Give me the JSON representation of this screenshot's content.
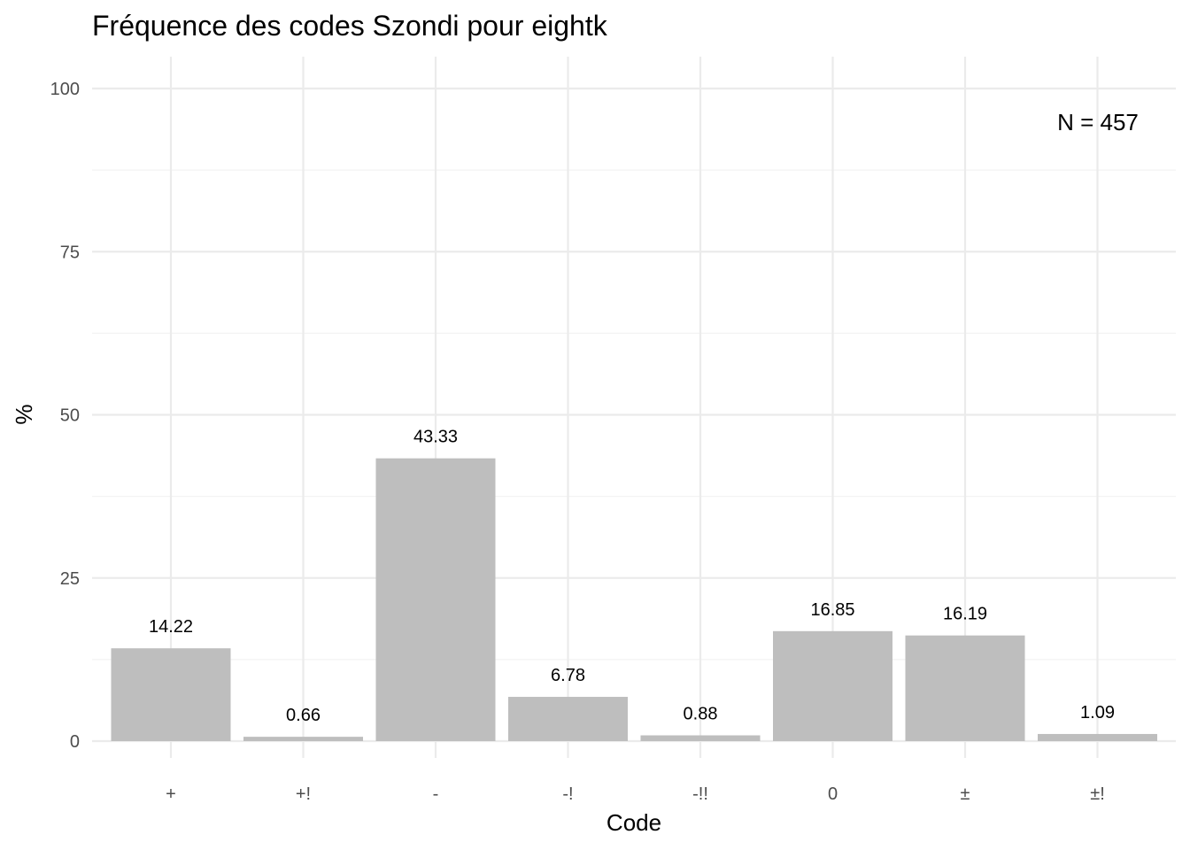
{
  "chart_data": {
    "type": "bar",
    "title": "Fréquence des codes Szondi pour eightk",
    "xlabel": "Code",
    "ylabel": "%",
    "categories": [
      "+",
      "+!",
      "-",
      "-!",
      "-!!",
      "0",
      "±",
      "±!"
    ],
    "values": [
      14.22,
      0.66,
      43.33,
      6.78,
      0.88,
      16.85,
      16.19,
      1.09
    ],
    "data_labels": [
      "14.22",
      "0.66",
      "43.33",
      "6.78",
      "0.88",
      "16.85",
      "16.19",
      "1.09"
    ],
    "ylim": [
      0,
      100
    ],
    "yticks": [
      0,
      25,
      50,
      75,
      100
    ],
    "ytick_labels": [
      "0",
      "25",
      "50",
      "75",
      "100"
    ],
    "annotation": "N = 457",
    "grid": true,
    "legend": "none",
    "bar_color": "#bebebe"
  }
}
